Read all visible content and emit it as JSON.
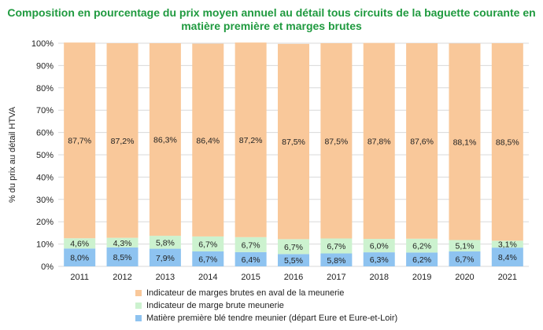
{
  "chart_data": {
    "type": "bar",
    "stacked": true,
    "title_line1": "Composition en pourcentage du prix moyen annuel au détail tous circuits de la baguette courante en",
    "title_line2": "matière première et marges brutes",
    "ylabel": "% du prix au détail HTVA",
    "ylim": [
      0,
      100
    ],
    "yticks": [
      "0%",
      "10%",
      "20%",
      "30%",
      "40%",
      "50%",
      "60%",
      "70%",
      "80%",
      "90%",
      "100%"
    ],
    "categories": [
      "2011",
      "2012",
      "2013",
      "2014",
      "2015",
      "2016",
      "2017",
      "2018",
      "2019",
      "2020",
      "2021"
    ],
    "series": [
      {
        "name": "Matière première blé tendre meunier (départ Eure et Eure-et-Loir)",
        "color": "#8ec3f0",
        "values": [
          8.0,
          8.5,
          7.9,
          6.7,
          6.4,
          5.5,
          5.8,
          6.3,
          6.2,
          6.7,
          8.4
        ],
        "labels": [
          "8,0%",
          "8,5%",
          "7,9%",
          "6,7%",
          "6,4%",
          "5,5%",
          "5,8%",
          "6,3%",
          "6,2%",
          "6,7%",
          "8,4%"
        ]
      },
      {
        "name": "Indicateur de marge brute meunerie",
        "color": "#ccf2cf",
        "values": [
          4.6,
          4.3,
          5.8,
          6.7,
          6.7,
          6.7,
          6.7,
          6.0,
          6.2,
          5.1,
          3.1
        ],
        "labels": [
          "4,6%",
          "4,3%",
          "5,8%",
          "6,7%",
          "6,7%",
          "6,7%",
          "6,7%",
          "6,0%",
          "6,2%",
          "5,1%",
          "3,1%"
        ]
      },
      {
        "name": "Indicateur de marges brutes en aval de la meunerie",
        "color": "#f9c89a",
        "values": [
          87.7,
          87.2,
          86.3,
          86.4,
          87.2,
          87.5,
          87.5,
          87.8,
          87.6,
          88.1,
          88.5
        ],
        "labels": [
          "87,7%",
          "87,2%",
          "86,3%",
          "86,4%",
          "87,2%",
          "87,5%",
          "87,5%",
          "87,8%",
          "87,6%",
          "88,1%",
          "88,5%"
        ]
      }
    ],
    "legend_order": [
      2,
      1,
      0
    ],
    "legend_position": "bottom",
    "grid": true
  }
}
